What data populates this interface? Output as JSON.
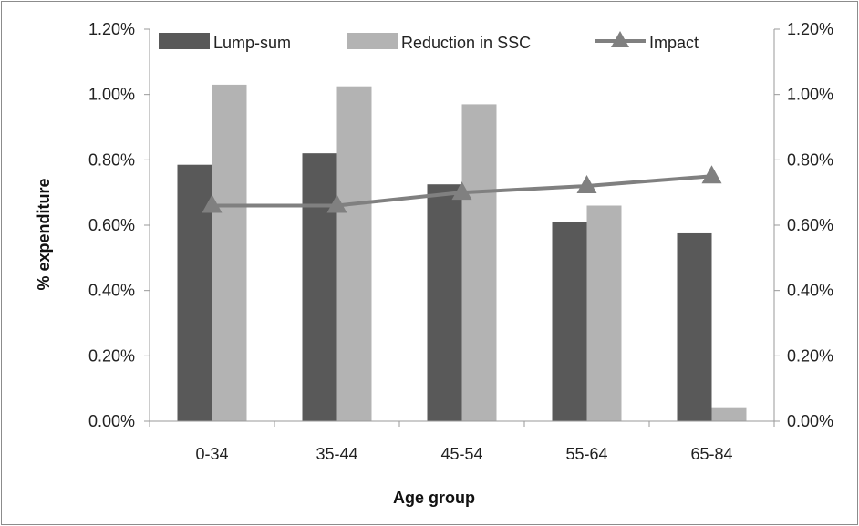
{
  "chart_data": {
    "type": "bar",
    "title": "",
    "xlabel": "Age group",
    "ylabel": "% expenditure",
    "categories": [
      "0-34",
      "35-44",
      "45-54",
      "55-64",
      "65-84"
    ],
    "ylim": [
      0,
      1.2
    ],
    "y2lim": [
      0,
      1.2
    ],
    "y_ticks": [
      "0.00%",
      "0.20%",
      "0.40%",
      "0.60%",
      "0.80%",
      "1.00%",
      "1.20%"
    ],
    "y2_ticks": [
      "0.00%",
      "0.20%",
      "0.40%",
      "0.60%",
      "0.80%",
      "1.00%",
      "1.20%"
    ],
    "grid": false,
    "legend_position": "top",
    "series": [
      {
        "name": "Lump-sum",
        "kind": "bar",
        "color": "#595959",
        "values": [
          0.785,
          0.82,
          0.725,
          0.61,
          0.575
        ]
      },
      {
        "name": "Reduction in SSC",
        "kind": "bar",
        "color": "#b3b3b3",
        "values": [
          1.03,
          1.025,
          0.97,
          0.66,
          0.04
        ]
      },
      {
        "name": "Impact",
        "kind": "line",
        "marker": "triangle",
        "axis": "secondary",
        "color": "#808080",
        "values": [
          0.66,
          0.66,
          0.7,
          0.72,
          0.75
        ]
      }
    ]
  }
}
